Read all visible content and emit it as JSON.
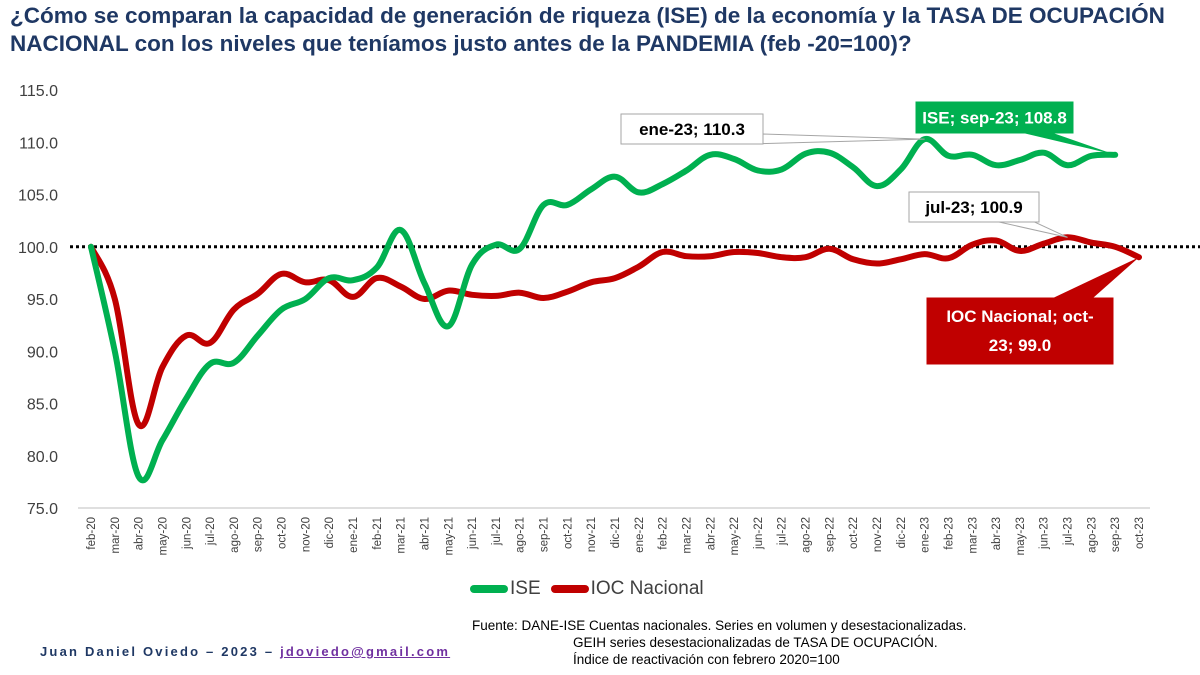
{
  "title": "¿Cómo se comparan la capacidad de generación de riqueza (ISE) de la economía y la TASA DE OCUPACIÓN NACIONAL con los niveles que teníamos justo antes de la PANDEMIA (feb -20=100)?",
  "footer": {
    "author": "Juan Daniel Oviedo – 2023 –",
    "email": "jdoviedo@gmail.com",
    "source_lines": [
      "Fuente: DANE-ISE Cuentas nacionales. Series en volumen y desestacionalizadas.",
      "GEIH series desestacionalizadas de TASA DE OCUPACIÓN.",
      "Índice de reactivación con febrero 2020=100"
    ]
  },
  "colors": {
    "ise": "#00b050",
    "ioc": "#c00000",
    "title": "#1f3864"
  },
  "chart_data": {
    "type": "line",
    "categories": [
      "feb-20",
      "mar-20",
      "abr-20",
      "may-20",
      "jun-20",
      "jul-20",
      "ago-20",
      "sep-20",
      "oct-20",
      "nov-20",
      "dic-20",
      "ene-21",
      "feb-21",
      "mar-21",
      "abr-21",
      "may-21",
      "jun-21",
      "jul-21",
      "ago-21",
      "sep-21",
      "oct-21",
      "nov-21",
      "dic-21",
      "ene-22",
      "feb-22",
      "mar-22",
      "abr-22",
      "may-22",
      "jun-22",
      "jul-22",
      "ago-22",
      "sep-22",
      "oct-22",
      "nov-22",
      "dic-22",
      "ene-23",
      "feb-23",
      "mar-23",
      "abr-23",
      "may-23",
      "jun-23",
      "jul-23",
      "ago-23",
      "sep-23",
      "oct-23"
    ],
    "ylim": [
      75,
      115
    ],
    "yticks": [
      "75.0",
      "80.0",
      "85.0",
      "90.0",
      "95.0",
      "100.0",
      "105.0",
      "110.0",
      "115.0"
    ],
    "reference_line": 100,
    "series": [
      {
        "name": "ISE",
        "color": "#00b050",
        "values": [
          100.0,
          90.0,
          78.0,
          81.5,
          85.5,
          88.8,
          88.9,
          91.5,
          94.0,
          95.0,
          97.0,
          96.8,
          98.0,
          101.6,
          96.5,
          92.4,
          98.3,
          100.2,
          99.8,
          104.0,
          104.0,
          105.5,
          106.7,
          105.2,
          106.0,
          107.3,
          108.8,
          108.4,
          107.3,
          107.4,
          108.9,
          109.0,
          107.6,
          105.8,
          107.4,
          110.3,
          108.7,
          108.8,
          107.8,
          108.3,
          109.0,
          107.8,
          108.7,
          108.8,
          null
        ]
      },
      {
        "name": "IOC Nacional",
        "color": "#c00000",
        "values": [
          100.0,
          95.0,
          83.0,
          88.5,
          91.5,
          90.8,
          94.0,
          95.5,
          97.4,
          96.6,
          96.8,
          95.2,
          97.0,
          96.2,
          95.0,
          95.8,
          95.4,
          95.3,
          95.6,
          95.1,
          95.7,
          96.6,
          97.0,
          98.1,
          99.5,
          99.1,
          99.1,
          99.5,
          99.4,
          99.0,
          99.0,
          99.8,
          98.8,
          98.4,
          98.8,
          99.3,
          98.9,
          100.2,
          100.6,
          99.6,
          100.3,
          100.9,
          100.4,
          100.0,
          99.0
        ]
      }
    ],
    "annotations": [
      {
        "text": "ene-23; 110.3",
        "series": 0,
        "index": 35,
        "style": "box"
      },
      {
        "text": "ISE; sep-23; 108.8",
        "series": 0,
        "index": 43,
        "style": "green"
      },
      {
        "text": "jul-23; 100.9",
        "series": 1,
        "index": 41,
        "style": "box"
      },
      {
        "text": "IOC Nacional; oct-23; 99.0",
        "lines": [
          "IOC Nacional; oct-",
          "23; 99.0"
        ],
        "series": 1,
        "index": 44,
        "style": "red"
      }
    ]
  }
}
